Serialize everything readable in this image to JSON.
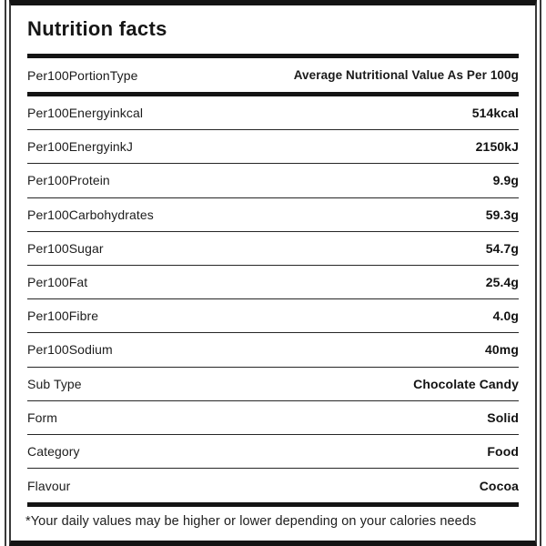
{
  "title": "Nutrition facts",
  "header": {
    "label": "Per100PortionType",
    "value": "Average Nutritional Value As Per 100g"
  },
  "rows": [
    {
      "label": "Per100Energyinkcal",
      "value": "514kcal"
    },
    {
      "label": "Per100EnergyinkJ",
      "value": "2150kJ"
    },
    {
      "label": "Per100Protein",
      "value": "9.9g"
    },
    {
      "label": "Per100Carbohydrates",
      "value": "59.3g"
    },
    {
      "label": "Per100Sugar",
      "value": "54.7g"
    },
    {
      "label": "Per100Fat",
      "value": "25.4g"
    },
    {
      "label": "Per100Fibre",
      "value": "4.0g"
    },
    {
      "label": "Per100Sodium",
      "value": "40mg"
    },
    {
      "label": "Sub Type",
      "value": "Chocolate Candy"
    },
    {
      "label": "Form",
      "value": "Solid"
    },
    {
      "label": "Category",
      "value": "Food"
    },
    {
      "label": "Flavour",
      "value": "Cocoa"
    }
  ],
  "footnote": "*Your daily values may be higher or lower depending on your calories needs",
  "colors": {
    "text": "#1a1a1a",
    "bar": "#141414",
    "separator": "#262626",
    "border": "#3a3a3a",
    "background": "#ffffff"
  }
}
